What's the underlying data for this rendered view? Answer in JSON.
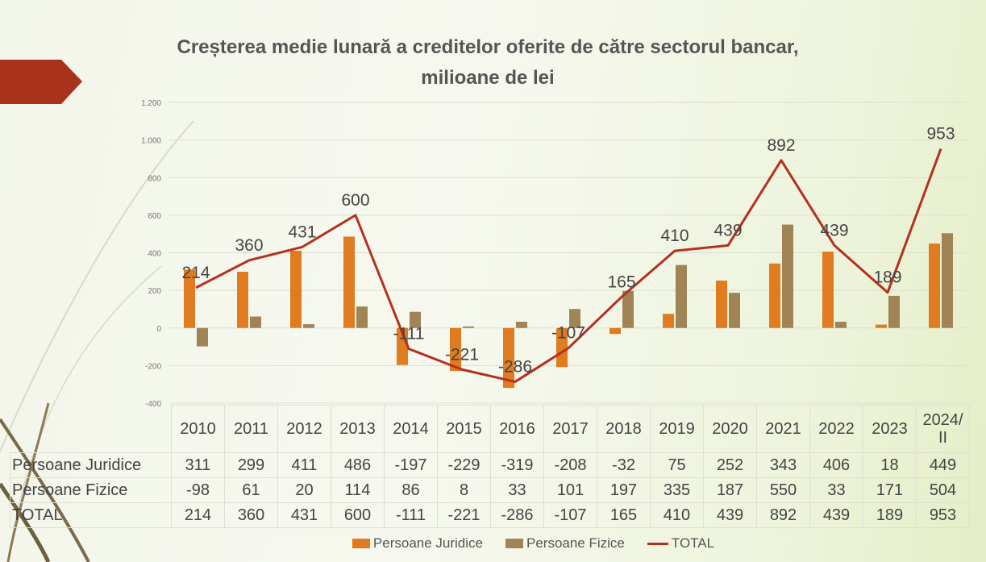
{
  "chart_data": {
    "type": "bar",
    "title": "Creșterea medie lunară a creditelor oferite de către sectorul bancar, milioane de lei",
    "title_lines": [
      "Creșterea medie lunară a creditelor oferite de către sectorul bancar,",
      "milioane de lei"
    ],
    "categories": [
      "2010",
      "2011",
      "2012",
      "2013",
      "2014",
      "2015",
      "2016",
      "2017",
      "2018",
      "2019",
      "2020",
      "2021",
      "2022",
      "2023",
      "2024/ II"
    ],
    "category_lines": [
      [
        "2010"
      ],
      [
        "2011"
      ],
      [
        "2012"
      ],
      [
        "2013"
      ],
      [
        "2014"
      ],
      [
        "2015"
      ],
      [
        "2016"
      ],
      [
        "2017"
      ],
      [
        "2018"
      ],
      [
        "2019"
      ],
      [
        "2020"
      ],
      [
        "2021"
      ],
      [
        "2022"
      ],
      [
        "2023"
      ],
      [
        "2024/",
        "II"
      ]
    ],
    "series": [
      {
        "name": "Persoane Juridice",
        "type": "bar",
        "color": "#e07b1f",
        "values": [
          311,
          299,
          411,
          486,
          -197,
          -229,
          -319,
          -208,
          -32,
          75,
          252,
          343,
          406,
          18,
          449
        ]
      },
      {
        "name": "Persoane Fizice",
        "type": "bar",
        "color": "#a08456",
        "values": [
          -98,
          61,
          20,
          114,
          86,
          8,
          33,
          101,
          197,
          335,
          187,
          550,
          33,
          171,
          504
        ]
      },
      {
        "name": "TOTAL",
        "type": "line",
        "color": "#b5301e",
        "values": [
          214,
          360,
          431,
          600,
          -111,
          -221,
          -286,
          -107,
          165,
          410,
          439,
          892,
          439,
          189,
          953
        ]
      }
    ],
    "yticks": [
      1200,
      1000,
      800,
      600,
      400,
      200,
      0,
      -200,
      -400
    ],
    "ytick_labels": [
      "1.200",
      "1.000",
      "800",
      "600",
      "400",
      "200",
      "0",
      "-200",
      "-400"
    ],
    "ylim": [
      -400,
      1200
    ],
    "grid": true,
    "legend_position": "bottom",
    "data_table": true
  }
}
